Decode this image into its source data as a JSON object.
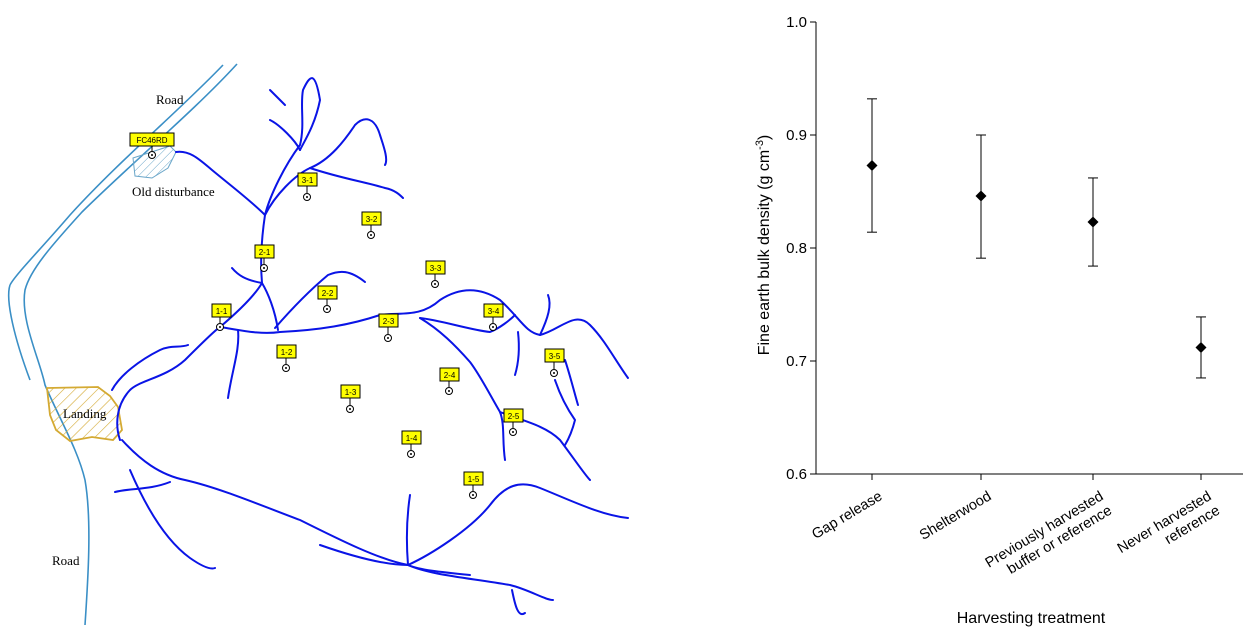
{
  "map": {
    "labels": {
      "road_top": "Road",
      "road_bottom": "Road",
      "old_disturbance": "Old disturbance",
      "landing": "Landing"
    },
    "plots": [
      "FC46RD",
      "3-1",
      "3-2",
      "2-1",
      "3-3",
      "2-2",
      "1-1",
      "3-4",
      "2-3",
      "1-2",
      "3-5",
      "2-4",
      "1-3",
      "2-5",
      "1-4",
      "1-5"
    ],
    "colors": {
      "stream": "#0a14e6",
      "road": "#3a8fc6",
      "plot_label": "#ffff00",
      "landing": "#d4aa33",
      "old_disturbance": "#6aa6c9"
    }
  },
  "chart_data": {
    "type": "scatter",
    "categories": [
      "Gap release",
      "Shelterwood",
      "Previously harvested buffer or reference",
      "Never harvested reference"
    ],
    "tick_labels": [
      [
        "Gap release"
      ],
      [
        "Shelterwood"
      ],
      [
        "Previously harvested",
        "buffer or reference"
      ],
      [
        "Never harvested",
        "reference"
      ]
    ],
    "values": [
      0.873,
      0.846,
      0.823,
      0.712
    ],
    "error_low": [
      0.814,
      0.791,
      0.784,
      0.685
    ],
    "error_high": [
      0.932,
      0.9,
      0.862,
      0.739
    ],
    "xlabel": "Harvesting treatment",
    "ylabel": "Fine earth bulk density (g cm",
    "ylabel_sup": "-3",
    "ylabel_close": ")",
    "ylim": [
      0.6,
      1.0
    ],
    "yticks": [
      "0.6",
      "0.7",
      "0.8",
      "0.9",
      "1.0"
    ],
    "marker": "diamond",
    "grid": false
  }
}
